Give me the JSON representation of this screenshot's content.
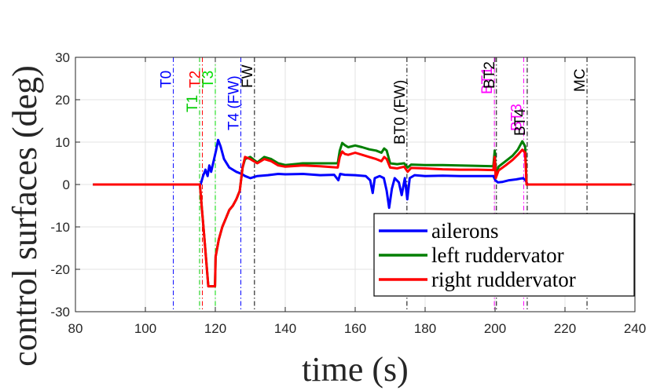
{
  "chart_data": {
    "type": "line",
    "title": "",
    "xlabel": "time (s)",
    "ylabel": "control surfaces (deg)",
    "xlim": [
      80,
      240
    ],
    "ylim": [
      -30,
      30
    ],
    "xticks": [
      80,
      100,
      120,
      140,
      160,
      180,
      200,
      220,
      240
    ],
    "yticks": [
      -30,
      -20,
      -10,
      0,
      10,
      20,
      30
    ],
    "grid": true,
    "legend_position": "lower-right",
    "events": [
      {
        "label": "T0",
        "t": 108,
        "color": "#0000ff"
      },
      {
        "label": "T1",
        "t": 115.5,
        "color": "#00cc00"
      },
      {
        "label": "T2",
        "t": 116.3,
        "color": "#ff0000"
      },
      {
        "label": "T3",
        "t": 120,
        "color": "#00dd00"
      },
      {
        "label": "T4 (FW)",
        "t": 127.3,
        "color": "#0000ff"
      },
      {
        "label": "FW",
        "t": 131.2,
        "color": "#000000"
      },
      {
        "label": "BT0 (FW)",
        "t": 174.8,
        "color": "#000000"
      },
      {
        "label": "BT1",
        "t": 199.8,
        "color": "#ff00ff"
      },
      {
        "label": "BT2",
        "t": 200.4,
        "color": "#000000"
      },
      {
        "label": "BT3",
        "t": 208.2,
        "color": "#ff00ff"
      },
      {
        "label": "BT4",
        "t": 209.2,
        "color": "#000000"
      },
      {
        "label": "MC",
        "t": 226.3,
        "color": "#000000"
      }
    ],
    "series": [
      {
        "name": "ailerons",
        "color": "#0000ff",
        "x": [
          85,
          115.8,
          116.5,
          117.2,
          117.8,
          118.3,
          118.8,
          119.5,
          120.2,
          120.8,
          121.5,
          122.5,
          124,
          126,
          127.5,
          128.5,
          130,
          132,
          135,
          138,
          140,
          145,
          150,
          154,
          155.2,
          155.7,
          157,
          160,
          163,
          164.3,
          165,
          165.6,
          167,
          168.2,
          169,
          169.7,
          170.5,
          171.3,
          172.5,
          173.3,
          174.2,
          174.9,
          175.6,
          177,
          180,
          185,
          190,
          195,
          199.5,
          200.1,
          200.8,
          202,
          204,
          206,
          208,
          208.7,
          209.3,
          215,
          225,
          239
        ],
        "y": [
          0,
          0,
          2,
          3.5,
          2,
          4.5,
          3,
          5.5,
          8,
          10.5,
          9,
          6,
          4,
          3,
          2.5,
          2,
          1.5,
          2,
          2.2,
          2.5,
          2.4,
          2.5,
          2.2,
          2.3,
          1,
          2.5,
          2.3,
          2.2,
          2,
          1,
          -2,
          1.5,
          2,
          1.5,
          -1.5,
          -5.5,
          -1,
          1.5,
          0.5,
          -2.5,
          1.5,
          -3.5,
          1.5,
          2.2,
          2,
          2.1,
          2,
          2,
          2,
          1,
          0.5,
          0.6,
          1,
          1.2,
          1.5,
          1,
          0,
          0,
          0,
          0
        ]
      },
      {
        "name": "left ruddervator",
        "color": "#007f00",
        "x": [
          85,
          115.6,
          116.1,
          116.8,
          117.5,
          118,
          118.5,
          119.5,
          119.9,
          120.1,
          121,
          122,
          123,
          124,
          125,
          126,
          127,
          127.8,
          128.5,
          130,
          132,
          134,
          136,
          138,
          140,
          145,
          150,
          155,
          155.6,
          156.3,
          157,
          158,
          160,
          162,
          164,
          166,
          167.5,
          168.3,
          169,
          170,
          172,
          174,
          175,
          176,
          180,
          185,
          190,
          195,
          199.5,
          199.9,
          200.2,
          201,
          203,
          205,
          206.5,
          207.8,
          208.6,
          209,
          215,
          225,
          239
        ],
        "y": [
          0,
          0,
          -5,
          -12,
          -19,
          -24,
          -24,
          -24,
          -24,
          -17,
          -13,
          -10,
          -8,
          -6,
          -5,
          -3.5,
          -1.5,
          4,
          6,
          6.5,
          5.2,
          6.5,
          6,
          5,
          4.6,
          5,
          5,
          5,
          8,
          9.8,
          9.3,
          8.8,
          9.2,
          8.8,
          8.3,
          8,
          7.5,
          8.5,
          8,
          5,
          4.8,
          5,
          4,
          4.7,
          4.6,
          4.6,
          4.5,
          4.4,
          4.3,
          8,
          2,
          4.2,
          5.5,
          6.8,
          8.2,
          10.2,
          9,
          0,
          0,
          0,
          0
        ]
      },
      {
        "name": "right ruddervator",
        "color": "#ff0000",
        "x": [
          85,
          115.6,
          116.1,
          116.8,
          117.5,
          118,
          118.5,
          119.5,
          119.9,
          120.1,
          121,
          122,
          123,
          124,
          125,
          126,
          127,
          127.8,
          128.5,
          130,
          132,
          134,
          136,
          138,
          140,
          145,
          150,
          155,
          155.6,
          156.3,
          157,
          158,
          160,
          162,
          164,
          166,
          167.5,
          168.3,
          169,
          170,
          172,
          174,
          175,
          176,
          180,
          185,
          190,
          195,
          199.5,
          199.9,
          200.2,
          201,
          203,
          205,
          206.5,
          207.8,
          208.6,
          209,
          215,
          225,
          239
        ],
        "y": [
          0,
          0,
          -5,
          -12,
          -19,
          -24,
          -24,
          -24,
          -24,
          -17,
          -13,
          -10,
          -8,
          -6,
          -5,
          -3.5,
          -1.5,
          4,
          6.5,
          6,
          5,
          6,
          5.5,
          4.5,
          4.2,
          4.5,
          4.3,
          4,
          6.5,
          7.8,
          7.2,
          7,
          7.5,
          7,
          6.5,
          6,
          5.5,
          6.5,
          6,
          4,
          3.8,
          4.2,
          3,
          3.9,
          3.8,
          3.6,
          3.5,
          3.5,
          3.4,
          6.5,
          1.5,
          3.3,
          4.5,
          5.8,
          7,
          8.2,
          7.5,
          0,
          0,
          0,
          0
        ]
      }
    ]
  }
}
